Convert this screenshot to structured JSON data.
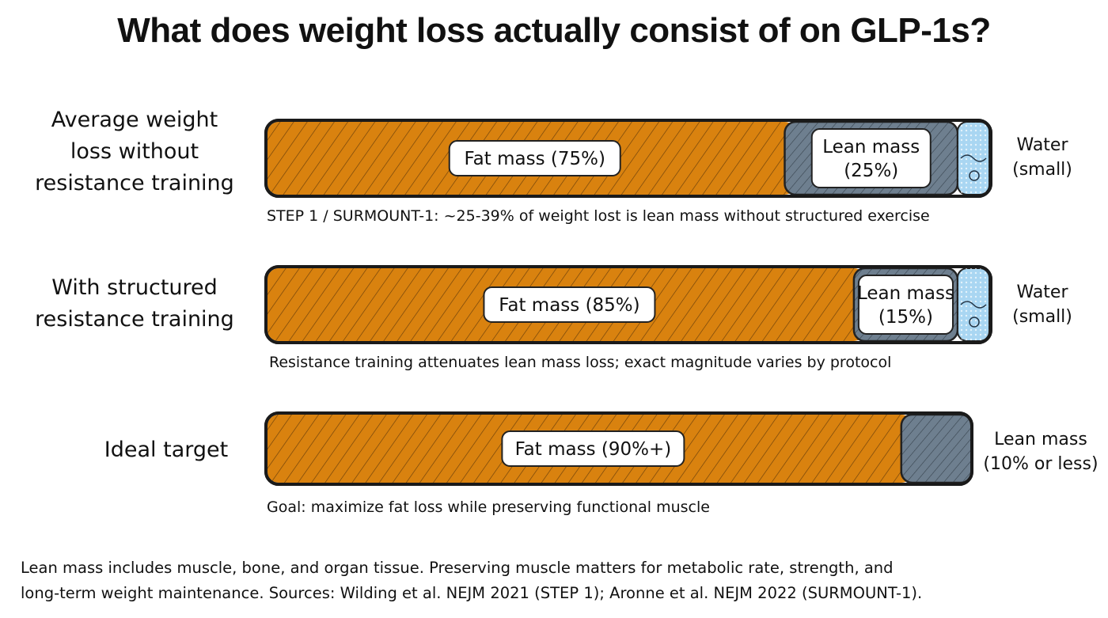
{
  "chart_data": {
    "type": "bar",
    "orientation": "horizontal",
    "stacked": true,
    "title": "What does weight loss actually consist of on GLP-1s?",
    "categories": [
      "Average weight loss without resistance training",
      "With structured resistance training",
      "Ideal target"
    ],
    "category_lines": [
      [
        "Average weight",
        "loss without",
        "resistance training"
      ],
      [
        "With structured",
        "resistance training"
      ],
      [
        "Ideal target"
      ]
    ],
    "series": [
      {
        "name": "Fat mass",
        "values": [
          75,
          85,
          90
        ],
        "color": "#d9820f"
      },
      {
        "name": "Lean mass",
        "values": [
          25,
          15,
          10
        ],
        "color": "#6e7f8f"
      },
      {
        "name": "Water",
        "values": [
          "small",
          "small",
          null
        ],
        "color": "#a9d6f2"
      }
    ],
    "segment_labels": [
      [
        "Fat mass (75%)",
        [
          "Lean mass",
          "(25%)"
        ]
      ],
      [
        "Fat mass (85%)",
        [
          "Lean mass",
          "(15%)"
        ]
      ],
      [
        "Fat mass (90%+)",
        null
      ]
    ],
    "side_labels": [
      [
        "Water",
        "(small)"
      ],
      [
        "Water",
        "(small)"
      ],
      [
        "Lean mass",
        "(10% or less)"
      ]
    ],
    "notes": [
      "STEP 1 / SURMOUNT-1: ~25-39% of weight lost is lean mass without structured exercise",
      "Resistance training attenuates lean mass loss; exact magnitude varies by protocol",
      "Goal: maximize fat loss while preserving functional muscle"
    ],
    "footer": [
      "Lean mass includes muscle, bone, and organ tissue. Preserving muscle matters for metabolic rate, strength, and",
      "long-term weight maintenance. Sources: Wilding et al. NEJM 2021 (STEP 1); Aronne et al. NEJM 2022 (SURMOUNT-1)."
    ]
  }
}
